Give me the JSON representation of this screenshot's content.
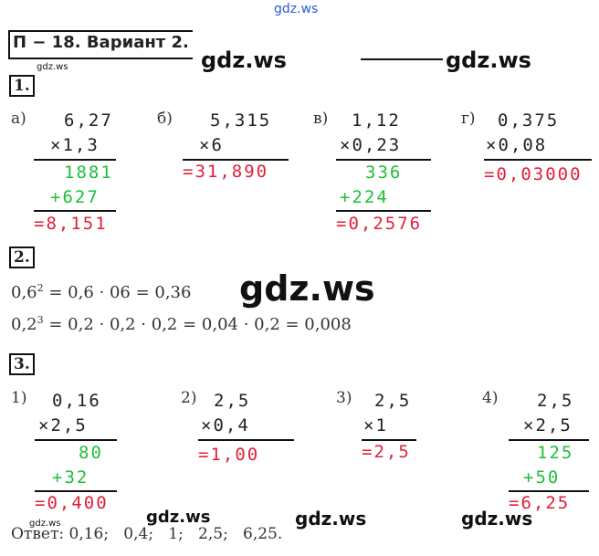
{
  "watermarks": {
    "top": "gdz.ws",
    "w1": "gdz.ws",
    "w2": "gdz.ws",
    "w3": "gdz.ws",
    "w4": "gdz.ws",
    "w5": "gdz.ws",
    "w6": "gdz.ws",
    "w7": "gdz.ws",
    "w8": "gdz.ws"
  },
  "header": {
    "title": "П − 18. Вариант 2."
  },
  "task1": {
    "number": "1.",
    "a": {
      "label": "а)",
      "n1": "6,27",
      "n2": "×1,3",
      "p1": "1881",
      "p2": "+627",
      "result": "=8,151"
    },
    "b": {
      "label": "б)",
      "n1": "5,315",
      "n2": "×6",
      "result": "=31,890"
    },
    "v": {
      "label": "в)",
      "n1": "1,12",
      "n2": "×0,23",
      "p1": "336",
      "p2": "+224",
      "result": "=0,2576"
    },
    "g": {
      "label": "г)",
      "n1": "0,375",
      "n2": "×0,08",
      "result": "=0,03000"
    }
  },
  "task2": {
    "number": "2.",
    "line1_base": "0,6",
    "line1_exp": "2",
    "line1_rest": " = 0,6 · 06 = 0,36",
    "line2_base": "0,2",
    "line2_exp": "3",
    "line2_rest": " = 0,2 · 0,2 · 0,2 = 0,04 · 0,2 = 0,008"
  },
  "task3": {
    "number": "3.",
    "c1": {
      "label": "1)",
      "n1": "0,16",
      "n2": "×2,5",
      "p1": "80",
      "p2": "+32",
      "result": "=0,400"
    },
    "c2": {
      "label": "2)",
      "n1": "2,5",
      "n2": "×0,4",
      "result": "=1,00"
    },
    "c3": {
      "label": "3)",
      "n1": "2,5",
      "n2": "×1",
      "result": "=2,5"
    },
    "c4": {
      "label": "4)",
      "n1": "2,5",
      "n2": "×2,5",
      "p1": "125",
      "p2": "+50",
      "result": "=6,25"
    }
  },
  "answer": {
    "text": "Ответ: 0,16;   0,4;   1;   2,5;   6,25."
  },
  "colors": {
    "green": "#1fbf3a",
    "red": "#e0203a",
    "ink": "#222222"
  }
}
